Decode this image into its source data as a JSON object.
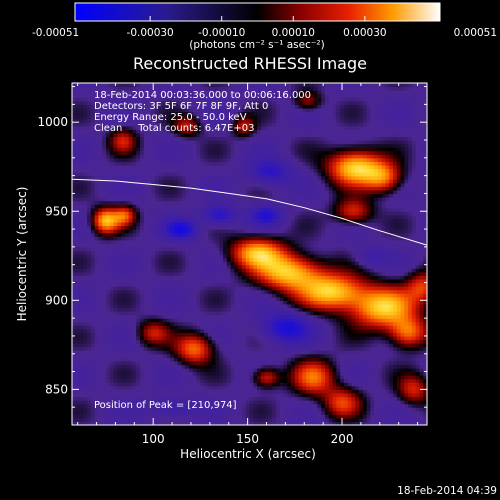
{
  "chart_data": {
    "type": "heatmap",
    "title": "Reconstructed RHESSI Image",
    "xlabel": "Heliocentric X (arcsec)",
    "ylabel": "Heliocentric Y (arcsec)",
    "xlim": [
      57,
      245
    ],
    "ylim": [
      830,
      1022
    ],
    "x_ticks": [
      100,
      150,
      200
    ],
    "y_ticks": [
      850,
      900,
      950,
      1000
    ],
    "colorbar": {
      "label": "(photons cm⁻² s⁻¹ asec⁻²)",
      "range": [
        -0.00051,
        0.00051
      ],
      "tick_values": [
        -0.00051,
        -0.0003,
        -0.0001,
        0.0001,
        0.0003,
        0.00051
      ],
      "tick_labels": [
        "-0.00051",
        "-0.00030",
        "-0.00010",
        "0.00010",
        "0.00030",
        "0.00051"
      ]
    },
    "annotations": [
      "18-Feb-2014 00:03:36.000 to 00:06:16.000",
      "Detectors: 3F 5F 6F 7F 8F 9F, Att 0",
      "Energy Range: 25.0 - 50.0 keV",
      "Clean     Total counts: 6.47E+03"
    ],
    "peak_label": "Position of Peak = [210,974]",
    "peak": [
      210,
      974
    ],
    "footer": "18-Feb-2014 04:39",
    "grid": false,
    "limb_curve": {
      "x": [
        57,
        80,
        100,
        120,
        140,
        160,
        180,
        200,
        220,
        245
      ],
      "y": [
        968,
        967,
        965,
        963,
        960,
        957,
        952,
        946,
        939,
        931
      ]
    },
    "sources": [
      {
        "x": 207,
        "y": 975,
        "sx": 10,
        "sy": 7,
        "amp": 1.0
      },
      {
        "x": 222,
        "y": 969,
        "sx": 7,
        "sy": 6,
        "amp": 0.65
      },
      {
        "x": 206,
        "y": 950,
        "sx": 7,
        "sy": 5,
        "amp": 0.55
      },
      {
        "x": 75,
        "y": 945,
        "sx": 5,
        "sy": 5,
        "amp": 0.9
      },
      {
        "x": 85,
        "y": 948,
        "sx": 4,
        "sy": 4,
        "amp": 0.55
      },
      {
        "x": 155,
        "y": 927,
        "sx": 10,
        "sy": 6,
        "amp": 0.85
      },
      {
        "x": 172,
        "y": 916,
        "sx": 12,
        "sy": 7,
        "amp": 0.95
      },
      {
        "x": 195,
        "y": 905,
        "sx": 12,
        "sy": 7,
        "amp": 0.95
      },
      {
        "x": 222,
        "y": 896,
        "sx": 12,
        "sy": 8,
        "amp": 0.95
      },
      {
        "x": 243,
        "y": 908,
        "sx": 6,
        "sy": 6,
        "amp": 0.55
      },
      {
        "x": 235,
        "y": 882,
        "sx": 7,
        "sy": 6,
        "amp": 0.7
      },
      {
        "x": 100,
        "y": 882,
        "sx": 6,
        "sy": 5,
        "amp": 0.45
      },
      {
        "x": 122,
        "y": 873,
        "sx": 7,
        "sy": 6,
        "amp": 0.7
      },
      {
        "x": 160,
        "y": 857,
        "sx": 5,
        "sy": 4,
        "amp": 0.55
      },
      {
        "x": 185,
        "y": 857,
        "sx": 8,
        "sy": 7,
        "amp": 0.65
      },
      {
        "x": 200,
        "y": 843,
        "sx": 7,
        "sy": 6,
        "amp": 0.55
      },
      {
        "x": 238,
        "y": 850,
        "sx": 6,
        "sy": 6,
        "amp": 0.5
      },
      {
        "x": 118,
        "y": 998,
        "sx": 5,
        "sy": 4,
        "amp": 0.45
      },
      {
        "x": 84,
        "y": 990,
        "sx": 5,
        "sy": 5,
        "amp": 0.45
      },
      {
        "x": 148,
        "y": 998,
        "sx": 4,
        "sy": 4,
        "amp": 0.45
      },
      {
        "x": 182,
        "y": 1012,
        "sx": 5,
        "sy": 4,
        "amp": 0.4
      },
      {
        "x": 115,
        "y": 940,
        "sx": 6,
        "sy": 4,
        "amp": -0.55
      },
      {
        "x": 135,
        "y": 948,
        "sx": 6,
        "sy": 4,
        "amp": -0.5
      },
      {
        "x": 160,
        "y": 948,
        "sx": 6,
        "sy": 4,
        "amp": -0.45
      },
      {
        "x": 162,
        "y": 972,
        "sx": 8,
        "sy": 5,
        "amp": -0.45
      },
      {
        "x": 170,
        "y": 885,
        "sx": 9,
        "sy": 6,
        "amp": -0.55
      },
      {
        "x": 110,
        "y": 840,
        "sx": 8,
        "sy": 4,
        "amp": -0.35
      },
      {
        "x": 215,
        "y": 925,
        "sx": 6,
        "sy": 4,
        "amp": -0.25
      }
    ]
  }
}
